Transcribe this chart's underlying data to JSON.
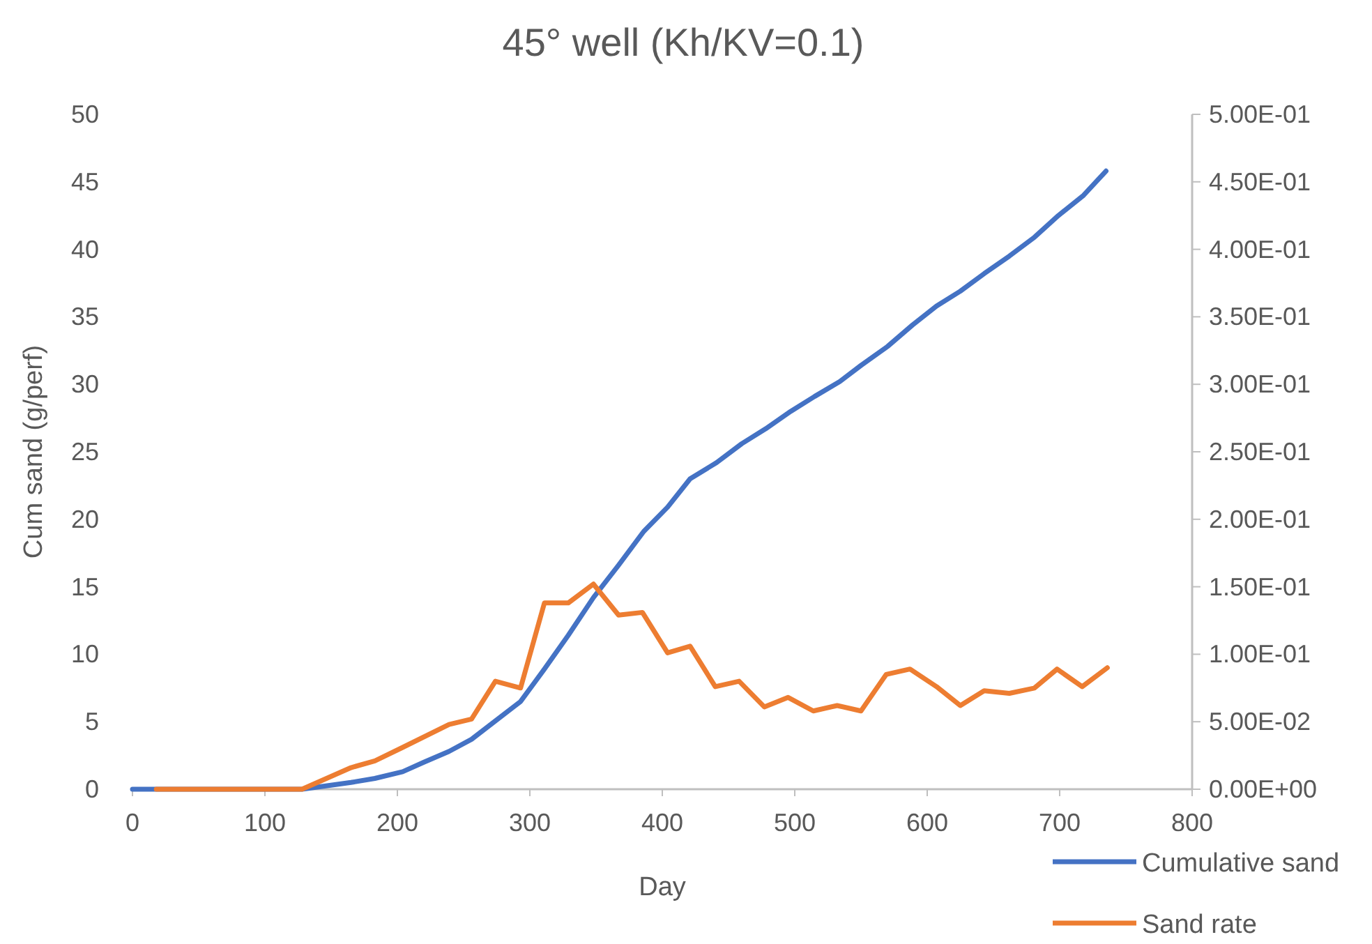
{
  "chart_data": {
    "type": "line",
    "title": "45° well (Kh/KV=0.1)",
    "xlabel": "Day",
    "ylabel": "Cum sand (g/perf)",
    "xlim": [
      0,
      800
    ],
    "xticks": [
      0,
      100,
      200,
      300,
      400,
      500,
      600,
      700,
      800
    ],
    "ylim": [
      0,
      50
    ],
    "yticks": [
      0,
      5,
      10,
      15,
      20,
      25,
      30,
      35,
      40,
      45,
      50
    ],
    "y2lim": [
      0,
      0.5
    ],
    "y2ticks": [
      {
        "value": 0,
        "label": "0.00E+00"
      },
      {
        "value": 0.05,
        "label": "5.00E-02"
      },
      {
        "value": 0.1,
        "label": "1.00E-01"
      },
      {
        "value": 0.15,
        "label": "1.50E-01"
      },
      {
        "value": 0.2,
        "label": "2.00E-01"
      },
      {
        "value": 0.25,
        "label": "2.50E-01"
      },
      {
        "value": 0.3,
        "label": "3.00E-01"
      },
      {
        "value": 0.35,
        "label": "3.50E-01"
      },
      {
        "value": 0.4,
        "label": "4.00E-01"
      },
      {
        "value": 0.45,
        "label": "4.50E-01"
      },
      {
        "value": 0.5,
        "label": "5.00E-01"
      }
    ],
    "legend": "bottom right",
    "grid": false,
    "series": [
      {
        "name": "Cumulative sand",
        "color": "#4472c4",
        "x": [
          0,
          128,
          165,
          183,
          204,
          220,
          239,
          256,
          293,
          311,
          329,
          348,
          367,
          386,
          404,
          421,
          441,
          460,
          478,
          497,
          515,
          534,
          550,
          570,
          589,
          607,
          625,
          643,
          662,
          681,
          699,
          718,
          735
        ],
        "values": [
          0,
          0,
          0.5,
          0.8,
          1.3,
          2.0,
          2.8,
          3.7,
          6.5,
          8.9,
          11.4,
          14.2,
          16.6,
          19.1,
          20.9,
          23.0,
          24.2,
          25.6,
          26.7,
          28.0,
          29.1,
          30.2,
          31.4,
          32.8,
          34.4,
          35.8,
          36.9,
          38.2,
          39.5,
          40.9,
          42.5,
          44.0,
          45.8
        ]
      },
      {
        "name": "Sand rate",
        "color": "#ed7d31",
        "axis": "y2",
        "x": [
          18,
          128,
          165,
          183,
          204,
          239,
          256,
          274,
          293,
          311,
          329,
          348,
          367,
          385,
          404,
          421,
          440,
          458,
          477,
          495,
          514,
          532,
          550,
          569,
          587,
          607,
          625,
          643,
          662,
          681,
          698,
          717,
          736
        ],
        "values": [
          0,
          0,
          0.016,
          0.021,
          0.031,
          0.048,
          0.052,
          0.08,
          0.075,
          0.138,
          0.138,
          0.152,
          0.129,
          0.131,
          0.101,
          0.106,
          0.076,
          0.08,
          0.061,
          0.068,
          0.058,
          0.062,
          0.058,
          0.085,
          0.089,
          0.076,
          0.062,
          0.073,
          0.071,
          0.075,
          0.089,
          0.076,
          0.09
        ]
      }
    ]
  }
}
